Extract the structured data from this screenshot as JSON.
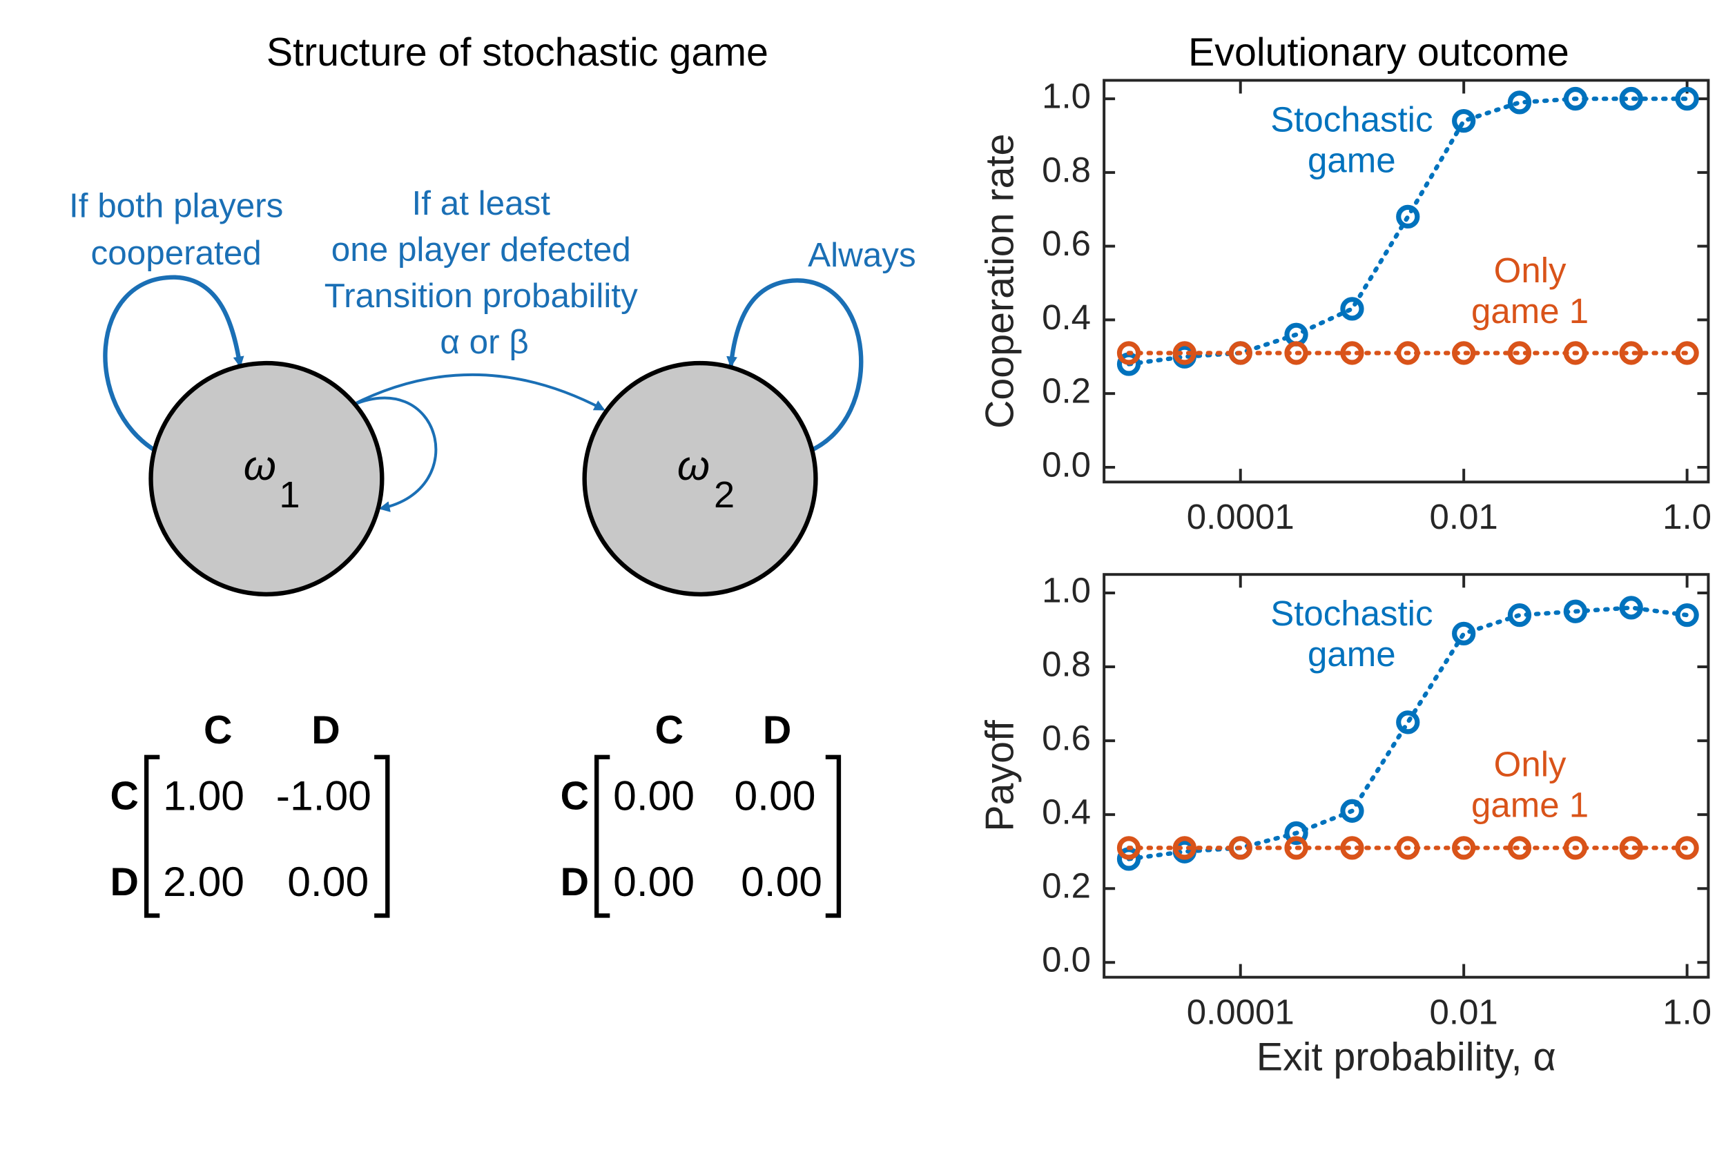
{
  "diagram": {
    "title": "Structure of stochastic game",
    "loop_label_1": [
      "If both players",
      "cooperated"
    ],
    "edge_label": [
      "If at least",
      "one player defected",
      "Transition probability",
      "α or β"
    ],
    "loop_label_2": "Always",
    "nodes": [
      {
        "symbol": "ω",
        "subscript": "1"
      },
      {
        "symbol": "ω",
        "subscript": "2"
      }
    ],
    "matrices": [
      {
        "col_headers": [
          "C",
          "D"
        ],
        "row_headers": [
          "C",
          "D"
        ],
        "rows": [
          [
            "1.00",
            "-1.00"
          ],
          [
            "2.00",
            "0.00"
          ]
        ]
      },
      {
        "col_headers": [
          "C",
          "D"
        ],
        "row_headers": [
          "C",
          "D"
        ],
        "rows": [
          [
            "0.00",
            "0.00"
          ],
          [
            "0.00",
            "0.00"
          ]
        ]
      }
    ]
  },
  "chart_data": [
    {
      "type": "line",
      "title": "Evolutionary outcome",
      "y_label": "Cooperation rate",
      "xscale": "log",
      "x": [
        1e-05,
        3.16e-05,
        0.0001,
        0.000316,
        0.001,
        0.00316,
        0.01,
        0.0316,
        0.1,
        0.316,
        1
      ],
      "series": [
        {
          "color": "#0072BD",
          "values": [
            0.28,
            0.3,
            0.31,
            0.36,
            0.43,
            0.68,
            0.94,
            0.99,
            1.0,
            1.0,
            1.0
          ]
        },
        {
          "color": "#D95319",
          "values": [
            0.31,
            0.31,
            0.31,
            0.31,
            0.31,
            0.31,
            0.31,
            0.31,
            0.31,
            0.31,
            0.31
          ]
        }
      ],
      "annotations": [
        [
          "Stochastic",
          "game"
        ],
        [
          "Only",
          "game 1"
        ]
      ],
      "xlim": [
        6e-06,
        1.55
      ],
      "ylim": [
        -0.04,
        1.05
      ],
      "xticks": [
        0.0001,
        0.01,
        {
          "value": 1,
          "label": "1.0"
        }
      ],
      "yticks": [
        {
          "value": 0,
          "label": "0.0"
        },
        0.2,
        0.4,
        0.6,
        0.8,
        {
          "value": 1,
          "label": "1.0"
        }
      ]
    },
    {
      "type": "line",
      "y_label": "Payoff",
      "x_label": "Exit probability, α",
      "xscale": "log",
      "x": [
        1e-05,
        3.16e-05,
        0.0001,
        0.000316,
        0.001,
        0.00316,
        0.01,
        0.0316,
        0.1,
        0.316,
        1
      ],
      "series": [
        {
          "color": "#0072BD",
          "values": [
            0.28,
            0.3,
            0.31,
            0.35,
            0.41,
            0.65,
            0.89,
            0.94,
            0.95,
            0.96,
            0.94
          ]
        },
        {
          "color": "#D95319",
          "values": [
            0.31,
            0.31,
            0.31,
            0.31,
            0.31,
            0.31,
            0.31,
            0.31,
            0.31,
            0.31,
            0.31
          ]
        }
      ],
      "annotations": [
        [
          "Stochastic",
          "game"
        ],
        [
          "Only",
          "game 1"
        ]
      ],
      "xlim": [
        6e-06,
        1.55
      ],
      "ylim": [
        -0.04,
        1.05
      ],
      "xticks": [
        0.0001,
        0.01,
        {
          "value": 1,
          "label": "1.0"
        }
      ],
      "yticks": [
        {
          "value": 0,
          "label": "0.0"
        },
        0.2,
        0.4,
        0.6,
        0.8,
        {
          "value": 1,
          "label": "1.0"
        }
      ]
    }
  ]
}
